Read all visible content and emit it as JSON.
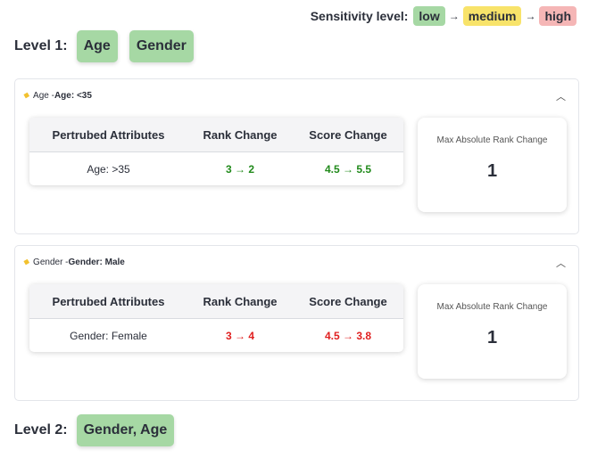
{
  "legend": {
    "label": "Sensitivity level:",
    "low": "low",
    "medium": "medium",
    "high": "high",
    "arrow": "→"
  },
  "level1": {
    "label": "Level 1:",
    "tags": [
      "Age",
      "Gender"
    ]
  },
  "level2": {
    "label": "Level 2:",
    "tags": [
      "Gender, Age"
    ]
  },
  "panels": [
    {
      "header_prefix": "Age - ",
      "header_bold": "Age: <35",
      "table": {
        "headers": [
          "Pertrubed Attributes",
          "Rank Change",
          "Score Change"
        ],
        "row": {
          "attribute": "Age: >35",
          "rank_change": "3 → 2",
          "score_change": "4.5 → 5.5"
        }
      },
      "metric": {
        "label": "Max Absolute Rank Change",
        "value": "1"
      }
    },
    {
      "header_prefix": "Gender - ",
      "header_bold": "Gender: Male",
      "table": {
        "headers": [
          "Pertrubed Attributes",
          "Rank Change",
          "Score Change"
        ],
        "row": {
          "attribute": "Gender: Female",
          "rank_change": "3 → 4",
          "score_change": "4.5 → 3.8"
        }
      },
      "metric": {
        "label": "Max Absolute Rank Change",
        "value": "1"
      }
    }
  ],
  "colors": {
    "low": "#a6d8a4",
    "medium": "#f8e36a",
    "high": "#f5b6b6",
    "positive": "#218a1b",
    "negative": "#e02020"
  }
}
